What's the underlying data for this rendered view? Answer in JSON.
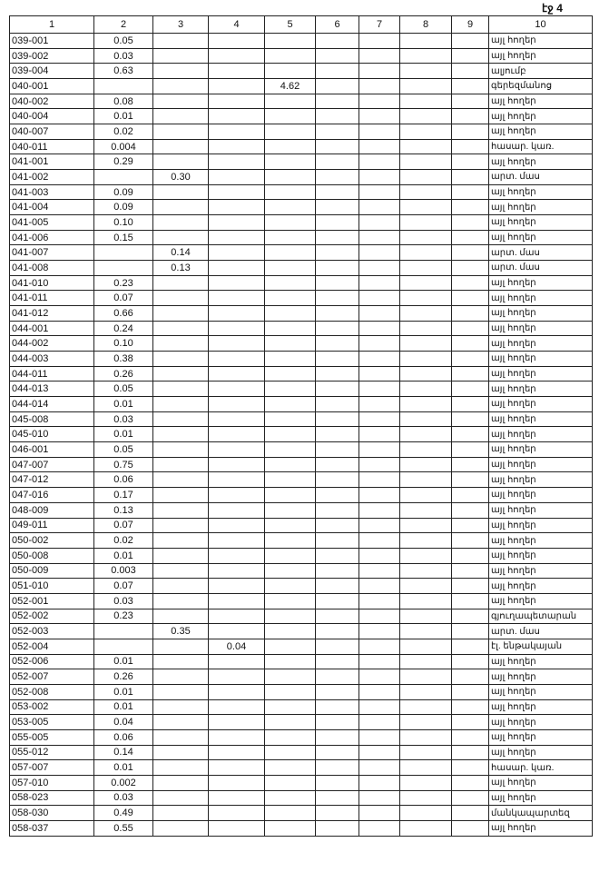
{
  "page_label": "էջ 4",
  "headers": [
    "1",
    "2",
    "3",
    "4",
    "5",
    "6",
    "7",
    "8",
    "9",
    "10"
  ],
  "rows": [
    [
      "039-001",
      "0.05",
      "",
      "",
      "",
      "",
      "",
      "",
      "",
      "այլ հողեր"
    ],
    [
      "039-002",
      "0.03",
      "",
      "",
      "",
      "",
      "",
      "",
      "",
      "այլ հողեր"
    ],
    [
      "039-004",
      "0.63",
      "",
      "",
      "",
      "",
      "",
      "",
      "",
      "ալյումբ"
    ],
    [
      "040-001",
      "",
      "",
      "",
      "4.62",
      "",
      "",
      "",
      "",
      "գերեզմանոց"
    ],
    [
      "040-002",
      "0.08",
      "",
      "",
      "",
      "",
      "",
      "",
      "",
      "այլ հողեր"
    ],
    [
      "040-004",
      "0.01",
      "",
      "",
      "",
      "",
      "",
      "",
      "",
      "այլ հողեր"
    ],
    [
      "040-007",
      "0.02",
      "",
      "",
      "",
      "",
      "",
      "",
      "",
      "այլ հողեր"
    ],
    [
      "040-011",
      "0.004",
      "",
      "",
      "",
      "",
      "",
      "",
      "",
      "հասար. կառ."
    ],
    [
      "041-001",
      "0.29",
      "",
      "",
      "",
      "",
      "",
      "",
      "",
      "այլ հողեր"
    ],
    [
      "041-002",
      "",
      "0.30",
      "",
      "",
      "",
      "",
      "",
      "",
      "արտ. մաս"
    ],
    [
      "041-003",
      "0.09",
      "",
      "",
      "",
      "",
      "",
      "",
      "",
      "այլ հողեր"
    ],
    [
      "041-004",
      "0.09",
      "",
      "",
      "",
      "",
      "",
      "",
      "",
      "այլ հողեր"
    ],
    [
      "041-005",
      "0.10",
      "",
      "",
      "",
      "",
      "",
      "",
      "",
      "այլ հողեր"
    ],
    [
      "041-006",
      "0.15",
      "",
      "",
      "",
      "",
      "",
      "",
      "",
      "այլ հողեր"
    ],
    [
      "041-007",
      "",
      "0.14",
      "",
      "",
      "",
      "",
      "",
      "",
      "արտ. մաս"
    ],
    [
      "041-008",
      "",
      "0.13",
      "",
      "",
      "",
      "",
      "",
      "",
      "արտ. մաս"
    ],
    [
      "041-010",
      "0.23",
      "",
      "",
      "",
      "",
      "",
      "",
      "",
      "այլ հողեր"
    ],
    [
      "041-011",
      "0.07",
      "",
      "",
      "",
      "",
      "",
      "",
      "",
      "այլ հողեր"
    ],
    [
      "041-012",
      "0.66",
      "",
      "",
      "",
      "",
      "",
      "",
      "",
      "այլ հողեր"
    ],
    [
      "044-001",
      "0.24",
      "",
      "",
      "",
      "",
      "",
      "",
      "",
      "այլ հողեր"
    ],
    [
      "044-002",
      "0.10",
      "",
      "",
      "",
      "",
      "",
      "",
      "",
      "այլ հողեր"
    ],
    [
      "044-003",
      "0.38",
      "",
      "",
      "",
      "",
      "",
      "",
      "",
      "այլ հողեր"
    ],
    [
      "044-011",
      "0.26",
      "",
      "",
      "",
      "",
      "",
      "",
      "",
      "այլ հողեր"
    ],
    [
      "044-013",
      "0.05",
      "",
      "",
      "",
      "",
      "",
      "",
      "",
      "այլ հողեր"
    ],
    [
      "044-014",
      "0.01",
      "",
      "",
      "",
      "",
      "",
      "",
      "",
      "այլ հողեր"
    ],
    [
      "045-008",
      "0.03",
      "",
      "",
      "",
      "",
      "",
      "",
      "",
      "այլ հողեր"
    ],
    [
      "045-010",
      "0.01",
      "",
      "",
      "",
      "",
      "",
      "",
      "",
      "այլ հողեր"
    ],
    [
      "046-001",
      "0.05",
      "",
      "",
      "",
      "",
      "",
      "",
      "",
      "այլ հողեր"
    ],
    [
      "047-007",
      "0.75",
      "",
      "",
      "",
      "",
      "",
      "",
      "",
      "այլ հողեր"
    ],
    [
      "047-012",
      "0.06",
      "",
      "",
      "",
      "",
      "",
      "",
      "",
      "այլ հողեր"
    ],
    [
      "047-016",
      "0.17",
      "",
      "",
      "",
      "",
      "",
      "",
      "",
      "այլ հողեր"
    ],
    [
      "048-009",
      "0.13",
      "",
      "",
      "",
      "",
      "",
      "",
      "",
      "այլ հողեր"
    ],
    [
      "049-011",
      "0.07",
      "",
      "",
      "",
      "",
      "",
      "",
      "",
      "այլ հողեր"
    ],
    [
      "050-002",
      "0.02",
      "",
      "",
      "",
      "",
      "",
      "",
      "",
      "այլ հողեր"
    ],
    [
      "050-008",
      "0.01",
      "",
      "",
      "",
      "",
      "",
      "",
      "",
      "այլ հողեր"
    ],
    [
      "050-009",
      "0.003",
      "",
      "",
      "",
      "",
      "",
      "",
      "",
      "այլ հողեր"
    ],
    [
      "051-010",
      "0.07",
      "",
      "",
      "",
      "",
      "",
      "",
      "",
      "այլ հողեր"
    ],
    [
      "052-001",
      "0.03",
      "",
      "",
      "",
      "",
      "",
      "",
      "",
      "այլ հողեր"
    ],
    [
      "052-002",
      "0.23",
      "",
      "",
      "",
      "",
      "",
      "",
      "",
      "գյուղապետարան"
    ],
    [
      "052-003",
      "",
      "0.35",
      "",
      "",
      "",
      "",
      "",
      "",
      "արտ. մաս"
    ],
    [
      "052-004",
      "",
      "",
      "0.04",
      "",
      "",
      "",
      "",
      "",
      "էլ. ենթակայան"
    ],
    [
      "052-006",
      "0.01",
      "",
      "",
      "",
      "",
      "",
      "",
      "",
      "այլ հողեր"
    ],
    [
      "052-007",
      "0.26",
      "",
      "",
      "",
      "",
      "",
      "",
      "",
      "այլ հողեր"
    ],
    [
      "052-008",
      "0.01",
      "",
      "",
      "",
      "",
      "",
      "",
      "",
      "այլ հողեր"
    ],
    [
      "053-002",
      "0.01",
      "",
      "",
      "",
      "",
      "",
      "",
      "",
      "այլ հողեր"
    ],
    [
      "053-005",
      "0.04",
      "",
      "",
      "",
      "",
      "",
      "",
      "",
      "այլ հողեր"
    ],
    [
      "055-005",
      "0.06",
      "",
      "",
      "",
      "",
      "",
      "",
      "",
      "այլ հողեր"
    ],
    [
      "055-012",
      "0.14",
      "",
      "",
      "",
      "",
      "",
      "",
      "",
      "այլ հողեր"
    ],
    [
      "057-007",
      "0.01",
      "",
      "",
      "",
      "",
      "",
      "",
      "",
      "հասար. կառ."
    ],
    [
      "057-010",
      "0.002",
      "",
      "",
      "",
      "",
      "",
      "",
      "",
      "այլ հողեր"
    ],
    [
      "058-023",
      "0.03",
      "",
      "",
      "",
      "",
      "",
      "",
      "",
      "այլ հողեր"
    ],
    [
      "058-030",
      "0.49",
      "",
      "",
      "",
      "",
      "",
      "",
      "",
      "մանկապարտեզ"
    ],
    [
      "058-037",
      "0.55",
      "",
      "",
      "",
      "",
      "",
      "",
      "",
      "այլ հողեր"
    ]
  ]
}
